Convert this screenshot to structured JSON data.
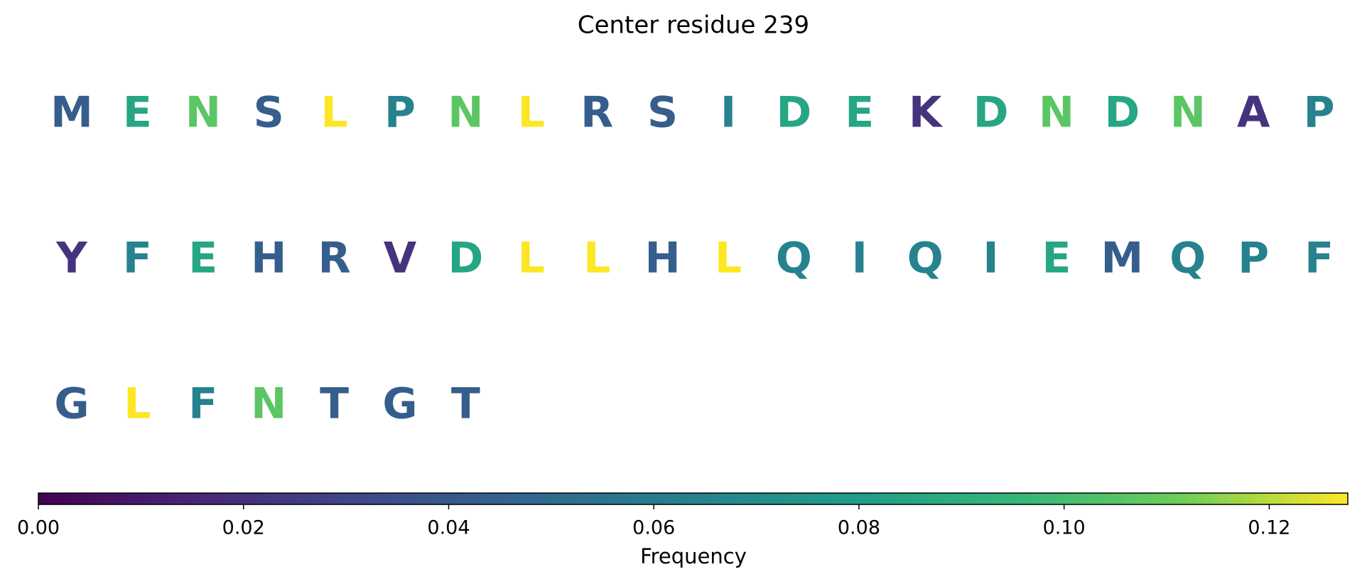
{
  "chart_data": {
    "type": "sequence",
    "title": "Center residue 239",
    "residues": [
      "M",
      "E",
      "N",
      "S",
      "L",
      "P",
      "N",
      "L",
      "R",
      "S",
      "I",
      "D",
      "E",
      "K",
      "D",
      "N",
      "D",
      "N",
      "A",
      "P",
      "Y",
      "F",
      "E",
      "H",
      "R",
      "V",
      "D",
      "L",
      "L",
      "H",
      "L",
      "Q",
      "I",
      "Q",
      "I",
      "E",
      "M",
      "Q",
      "P",
      "F",
      "G",
      "L",
      "F",
      "N",
      "T",
      "G",
      "T"
    ],
    "values": [
      0.04255,
      0.08511,
      0.10638,
      0.04255,
      0.12766,
      0.06383,
      0.10638,
      0.12766,
      0.04255,
      0.04255,
      0.06383,
      0.08511,
      0.08511,
      0.02128,
      0.08511,
      0.10638,
      0.08511,
      0.10638,
      0.02128,
      0.06383,
      0.02128,
      0.06383,
      0.08511,
      0.04255,
      0.04255,
      0.02128,
      0.08511,
      0.12766,
      0.12766,
      0.04255,
      0.12766,
      0.06383,
      0.06383,
      0.06383,
      0.06383,
      0.08511,
      0.04255,
      0.06383,
      0.06383,
      0.06383,
      0.04255,
      0.12766,
      0.06383,
      0.10638,
      0.04255,
      0.04255,
      0.04255
    ],
    "colormap": "viridis",
    "colorbar_label": "Frequency",
    "clim": [
      0,
      0.12766
    ],
    "cticks": [
      {
        "value": 0,
        "label": "0.00"
      },
      {
        "value": 0.02,
        "label": "0.02"
      },
      {
        "value": 0.04,
        "label": "0.04"
      },
      {
        "value": 0.06,
        "label": "0.06"
      },
      {
        "value": 0.08,
        "label": "0.08"
      },
      {
        "value": 0.1,
        "label": "0.10"
      },
      {
        "value": 0.12,
        "label": "0.12"
      }
    ]
  }
}
